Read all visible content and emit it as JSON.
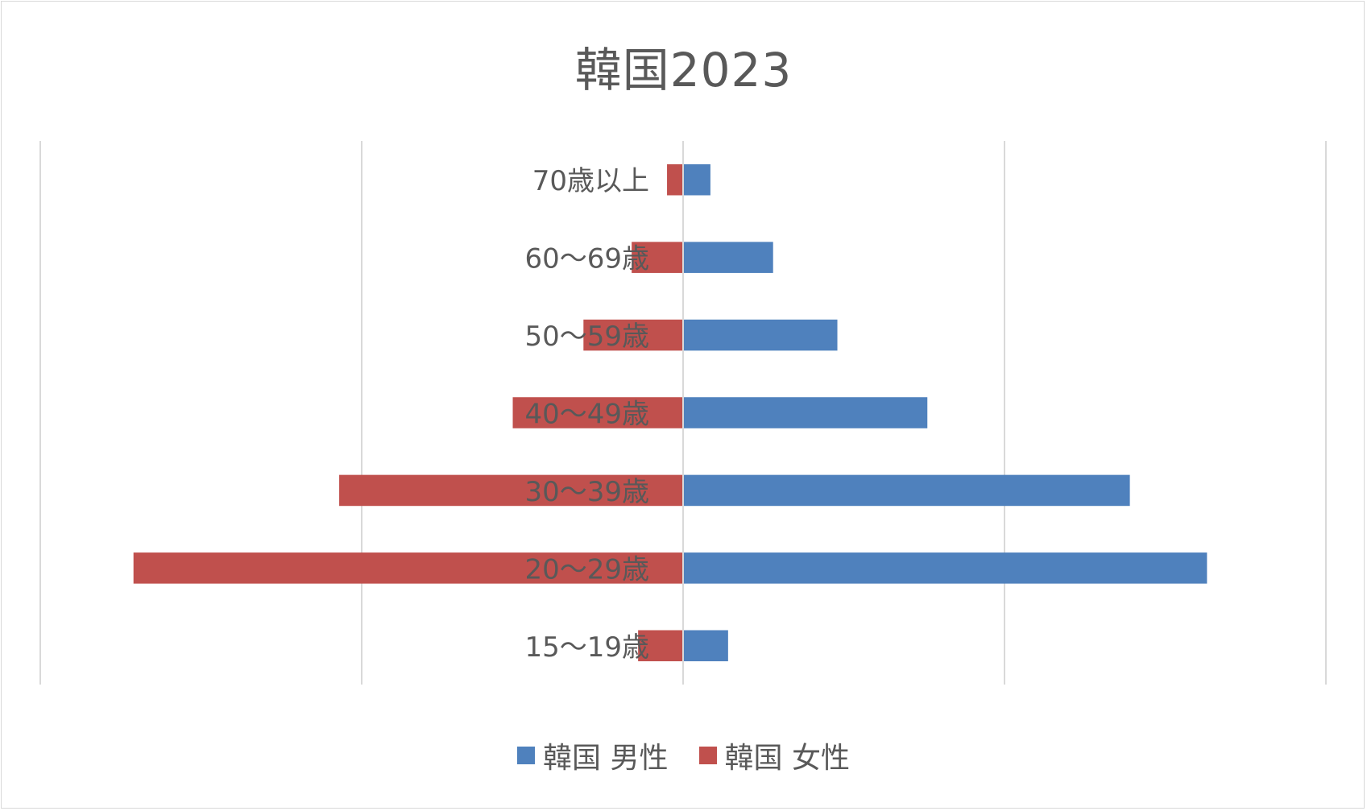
{
  "chart_data": {
    "type": "bar",
    "orientation": "horizontal-diverging",
    "title": "韓国2023",
    "categories": [
      "70歳以上",
      "60～69歳",
      "50～59歳",
      "40～49歳",
      "30～39歳",
      "20～29歳",
      "15～19歳"
    ],
    "series": [
      {
        "name": "韓国 男性",
        "color": "#4f81bd",
        "values": [
          0.85,
          2.8,
          4.8,
          7.6,
          13.9,
          16.3,
          1.4
        ]
      },
      {
        "name": "韓国 女性",
        "color": "#c0504d",
        "values": [
          0.5,
          1.6,
          3.1,
          5.3,
          10.7,
          17.1,
          1.4
        ]
      }
    ],
    "xlim": [
      -20,
      20
    ],
    "grid": true,
    "legend": "bottom",
    "tick_labels_visible": false
  }
}
